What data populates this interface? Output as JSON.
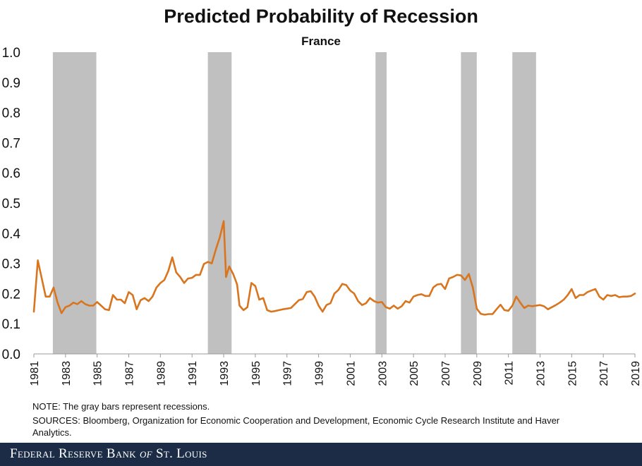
{
  "chart_data": {
    "type": "line",
    "title": "Predicted Probability of Recession",
    "subtitle": "France",
    "xlim": [
      1981,
      2019
    ],
    "ylim": [
      0.0,
      1.0
    ],
    "yticks": [
      "0.0",
      "0.1",
      "0.2",
      "0.3",
      "0.4",
      "0.5",
      "0.6",
      "0.7",
      "0.8",
      "0.9",
      "1.0"
    ],
    "xticks": [
      "1981",
      "1983",
      "1985",
      "1987",
      "1989",
      "1991",
      "1993",
      "1995",
      "1997",
      "1999",
      "2001",
      "2003",
      "2005",
      "2007",
      "2009",
      "2011",
      "2013",
      "2015",
      "2017",
      "2019"
    ],
    "grid": false,
    "line_color": "#d9751e",
    "recession_color": "#c0c0c0",
    "recessions": [
      [
        1982.2,
        1984.95
      ],
      [
        1992.0,
        1993.5
      ],
      [
        2002.6,
        2003.3
      ],
      [
        2008.0,
        2009.0
      ],
      [
        2011.25,
        2012.75
      ]
    ],
    "series": [
      {
        "values": [
          [
            1981.0,
            0.14
          ],
          [
            1981.25,
            0.31
          ],
          [
            1981.5,
            0.25
          ],
          [
            1981.75,
            0.19
          ],
          [
            1982.0,
            0.19
          ],
          [
            1982.25,
            0.22
          ],
          [
            1982.5,
            0.17
          ],
          [
            1982.75,
            0.135
          ],
          [
            1983.0,
            0.155
          ],
          [
            1983.25,
            0.16
          ],
          [
            1983.5,
            0.17
          ],
          [
            1983.75,
            0.165
          ],
          [
            1984.0,
            0.175
          ],
          [
            1984.25,
            0.165
          ],
          [
            1984.5,
            0.16
          ],
          [
            1984.75,
            0.16
          ],
          [
            1985.0,
            0.172
          ],
          [
            1985.25,
            0.16
          ],
          [
            1985.5,
            0.148
          ],
          [
            1985.75,
            0.145
          ],
          [
            1986.0,
            0.195
          ],
          [
            1986.25,
            0.18
          ],
          [
            1986.5,
            0.18
          ],
          [
            1986.75,
            0.168
          ],
          [
            1987.0,
            0.205
          ],
          [
            1987.25,
            0.195
          ],
          [
            1987.5,
            0.148
          ],
          [
            1987.75,
            0.178
          ],
          [
            1988.0,
            0.185
          ],
          [
            1988.25,
            0.175
          ],
          [
            1988.5,
            0.19
          ],
          [
            1988.75,
            0.22
          ],
          [
            1989.0,
            0.235
          ],
          [
            1989.25,
            0.245
          ],
          [
            1989.5,
            0.275
          ],
          [
            1989.75,
            0.32
          ],
          [
            1990.0,
            0.27
          ],
          [
            1990.25,
            0.255
          ],
          [
            1990.5,
            0.235
          ],
          [
            1990.75,
            0.25
          ],
          [
            1991.0,
            0.252
          ],
          [
            1991.25,
            0.262
          ],
          [
            1991.5,
            0.262
          ],
          [
            1991.75,
            0.298
          ],
          [
            1992.0,
            0.305
          ],
          [
            1992.25,
            0.3
          ],
          [
            1992.5,
            0.345
          ],
          [
            1992.75,
            0.385
          ],
          [
            1993.0,
            0.44
          ],
          [
            1993.15,
            0.255
          ],
          [
            1993.35,
            0.29
          ],
          [
            1993.6,
            0.265
          ],
          [
            1993.85,
            0.23
          ],
          [
            1994.0,
            0.16
          ],
          [
            1994.25,
            0.145
          ],
          [
            1994.5,
            0.155
          ],
          [
            1994.75,
            0.235
          ],
          [
            1995.0,
            0.225
          ],
          [
            1995.25,
            0.18
          ],
          [
            1995.5,
            0.185
          ],
          [
            1995.75,
            0.145
          ],
          [
            1996.0,
            0.14
          ],
          [
            1996.25,
            0.142
          ],
          [
            1996.5,
            0.145
          ],
          [
            1996.75,
            0.148
          ],
          [
            1997.0,
            0.15
          ],
          [
            1997.25,
            0.152
          ],
          [
            1997.5,
            0.165
          ],
          [
            1997.75,
            0.178
          ],
          [
            1998.0,
            0.182
          ],
          [
            1998.25,
            0.205
          ],
          [
            1998.5,
            0.208
          ],
          [
            1998.75,
            0.19
          ],
          [
            1999.0,
            0.16
          ],
          [
            1999.25,
            0.14
          ],
          [
            1999.5,
            0.162
          ],
          [
            1999.75,
            0.168
          ],
          [
            2000.0,
            0.2
          ],
          [
            2000.25,
            0.212
          ],
          [
            2000.5,
            0.232
          ],
          [
            2000.75,
            0.228
          ],
          [
            2001.0,
            0.21
          ],
          [
            2001.25,
            0.2
          ],
          [
            2001.5,
            0.175
          ],
          [
            2001.75,
            0.162
          ],
          [
            2002.0,
            0.168
          ],
          [
            2002.25,
            0.185
          ],
          [
            2002.5,
            0.175
          ],
          [
            2002.75,
            0.17
          ],
          [
            2003.0,
            0.172
          ],
          [
            2003.25,
            0.155
          ],
          [
            2003.5,
            0.15
          ],
          [
            2003.75,
            0.16
          ],
          [
            2004.0,
            0.15
          ],
          [
            2004.25,
            0.158
          ],
          [
            2004.5,
            0.175
          ],
          [
            2004.75,
            0.17
          ],
          [
            2005.0,
            0.19
          ],
          [
            2005.25,
            0.195
          ],
          [
            2005.5,
            0.198
          ],
          [
            2005.75,
            0.192
          ],
          [
            2006.0,
            0.192
          ],
          [
            2006.25,
            0.22
          ],
          [
            2006.5,
            0.23
          ],
          [
            2006.75,
            0.232
          ],
          [
            2007.0,
            0.215
          ],
          [
            2007.25,
            0.25
          ],
          [
            2007.5,
            0.255
          ],
          [
            2007.75,
            0.262
          ],
          [
            2008.0,
            0.26
          ],
          [
            2008.25,
            0.245
          ],
          [
            2008.5,
            0.265
          ],
          [
            2008.75,
            0.22
          ],
          [
            2009.0,
            0.15
          ],
          [
            2009.25,
            0.133
          ],
          [
            2009.5,
            0.13
          ],
          [
            2009.75,
            0.132
          ],
          [
            2010.0,
            0.132
          ],
          [
            2010.25,
            0.148
          ],
          [
            2010.5,
            0.163
          ],
          [
            2010.75,
            0.145
          ],
          [
            2011.0,
            0.143
          ],
          [
            2011.25,
            0.16
          ],
          [
            2011.5,
            0.19
          ],
          [
            2011.75,
            0.17
          ],
          [
            2012.0,
            0.152
          ],
          [
            2012.25,
            0.16
          ],
          [
            2012.5,
            0.158
          ],
          [
            2012.75,
            0.16
          ],
          [
            2013.0,
            0.162
          ],
          [
            2013.25,
            0.158
          ],
          [
            2013.5,
            0.148
          ],
          [
            2013.75,
            0.155
          ],
          [
            2014.0,
            0.162
          ],
          [
            2014.25,
            0.17
          ],
          [
            2014.5,
            0.18
          ],
          [
            2014.75,
            0.195
          ],
          [
            2015.0,
            0.215
          ],
          [
            2015.25,
            0.185
          ],
          [
            2015.5,
            0.195
          ],
          [
            2015.75,
            0.195
          ],
          [
            2016.0,
            0.205
          ],
          [
            2016.25,
            0.21
          ],
          [
            2016.5,
            0.215
          ],
          [
            2016.75,
            0.19
          ],
          [
            2017.0,
            0.18
          ],
          [
            2017.25,
            0.195
          ],
          [
            2017.5,
            0.192
          ],
          [
            2017.75,
            0.195
          ],
          [
            2018.0,
            0.188
          ],
          [
            2018.25,
            0.19
          ],
          [
            2018.5,
            0.19
          ],
          [
            2018.75,
            0.192
          ],
          [
            2019.0,
            0.2
          ]
        ]
      }
    ]
  },
  "notes": {
    "note": "NOTE: The gray bars represent recessions.",
    "sources_line1": "SOURCES: Bloomberg,  Organization for Economic Cooperation and Development,  Economic Cycle Research Institute and Haver",
    "sources_line2": "Analytics."
  },
  "footer": {
    "text_pre": "Federal Reserve Bank ",
    "text_of": "of",
    "text_post": " St. Louis"
  }
}
